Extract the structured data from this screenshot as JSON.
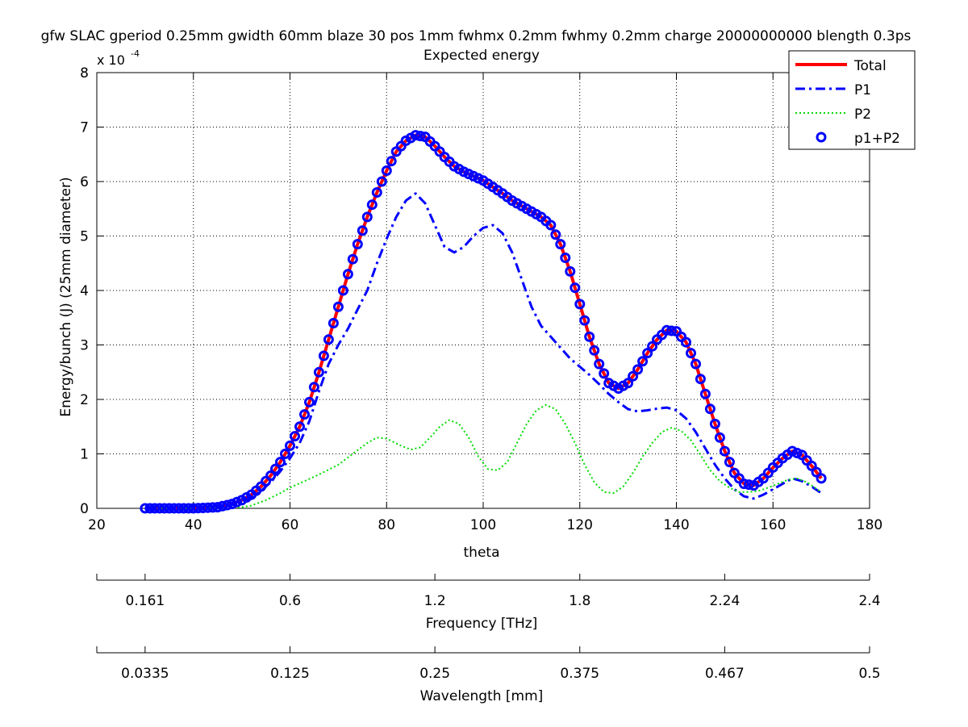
{
  "chart_data": {
    "type": "line",
    "title": "gfw SLAC gperiod 0.25mm gwidth 60mm blaze 30 pos 1mm fwhmx 0.2mm fwhmy 0.2mm charge 20000000000 blength 0.3ps",
    "subtitle": "Expected energy",
    "xlabel": "theta",
    "ylabel": "Energy/bunch (J) (25mm diameter)",
    "y_multiplier_label": "x 10",
    "y_multiplier_exponent": "-4",
    "xlim": [
      20,
      180
    ],
    "ylim": [
      0,
      8
    ],
    "x_ticks": [
      20,
      40,
      60,
      80,
      100,
      120,
      140,
      160,
      180
    ],
    "y_ticks": [
      0,
      1,
      2,
      3,
      4,
      5,
      6,
      7,
      8
    ],
    "grid": true,
    "legend_position": "top-right",
    "secondary_axes": [
      {
        "label": "Frequency [THz]",
        "ticks": [
          {
            "theta": 30,
            "label": "0.161"
          },
          {
            "theta": 60,
            "label": "0.6"
          },
          {
            "theta": 90,
            "label": "1.2"
          },
          {
            "theta": 120,
            "label": "1.8"
          },
          {
            "theta": 150,
            "label": "2.24"
          },
          {
            "theta": 180,
            "label": "2.4"
          }
        ]
      },
      {
        "label": "Wavelength [mm]",
        "ticks": [
          {
            "theta": 30,
            "label": "0.0335"
          },
          {
            "theta": 60,
            "label": "0.125"
          },
          {
            "theta": 90,
            "label": "0.25"
          },
          {
            "theta": 120,
            "label": "0.375"
          },
          {
            "theta": 150,
            "label": "0.467"
          },
          {
            "theta": 180,
            "label": "0.5"
          }
        ]
      }
    ],
    "series": [
      {
        "name": "Total",
        "color": "#ff0000",
        "style": "solid",
        "points": [
          [
            30,
            0
          ],
          [
            40,
            0
          ],
          [
            45,
            0.02
          ],
          [
            48,
            0.08
          ],
          [
            50,
            0.15
          ],
          [
            52,
            0.25
          ],
          [
            54,
            0.4
          ],
          [
            56,
            0.6
          ],
          [
            58,
            0.85
          ],
          [
            60,
            1.15
          ],
          [
            62,
            1.5
          ],
          [
            64,
            1.95
          ],
          [
            66,
            2.5
          ],
          [
            68,
            3.1
          ],
          [
            70,
            3.7
          ],
          [
            72,
            4.3
          ],
          [
            74,
            4.85
          ],
          [
            76,
            5.35
          ],
          [
            78,
            5.8
          ],
          [
            80,
            6.2
          ],
          [
            82,
            6.55
          ],
          [
            84,
            6.75
          ],
          [
            86,
            6.85
          ],
          [
            88,
            6.82
          ],
          [
            90,
            6.65
          ],
          [
            92,
            6.45
          ],
          [
            94,
            6.28
          ],
          [
            96,
            6.18
          ],
          [
            98,
            6.1
          ],
          [
            100,
            6.02
          ],
          [
            102,
            5.9
          ],
          [
            104,
            5.78
          ],
          [
            106,
            5.65
          ],
          [
            108,
            5.55
          ],
          [
            110,
            5.45
          ],
          [
            112,
            5.35
          ],
          [
            114,
            5.2
          ],
          [
            116,
            4.85
          ],
          [
            118,
            4.35
          ],
          [
            120,
            3.75
          ],
          [
            122,
            3.15
          ],
          [
            124,
            2.65
          ],
          [
            126,
            2.3
          ],
          [
            128,
            2.2
          ],
          [
            130,
            2.3
          ],
          [
            132,
            2.55
          ],
          [
            134,
            2.85
          ],
          [
            136,
            3.1
          ],
          [
            138,
            3.27
          ],
          [
            140,
            3.25
          ],
          [
            142,
            3.05
          ],
          [
            144,
            2.65
          ],
          [
            146,
            2.1
          ],
          [
            148,
            1.55
          ],
          [
            150,
            1.05
          ],
          [
            152,
            0.65
          ],
          [
            154,
            0.45
          ],
          [
            156,
            0.42
          ],
          [
            158,
            0.55
          ],
          [
            160,
            0.75
          ],
          [
            162,
            0.92
          ],
          [
            164,
            1.05
          ],
          [
            166,
            0.98
          ],
          [
            168,
            0.78
          ],
          [
            170,
            0.55
          ]
        ]
      },
      {
        "name": "P1",
        "color": "#0000ff",
        "style": "dashdot",
        "points": [
          [
            30,
            0
          ],
          [
            40,
            0
          ],
          [
            45,
            0.02
          ],
          [
            48,
            0.06
          ],
          [
            50,
            0.12
          ],
          [
            52,
            0.2
          ],
          [
            54,
            0.32
          ],
          [
            56,
            0.48
          ],
          [
            58,
            0.68
          ],
          [
            60,
            0.92
          ],
          [
            62,
            1.2
          ],
          [
            64,
            1.6
          ],
          [
            66,
            2.15
          ],
          [
            68,
            2.65
          ],
          [
            70,
            3.0
          ],
          [
            72,
            3.3
          ],
          [
            74,
            3.65
          ],
          [
            76,
            4.0
          ],
          [
            78,
            4.5
          ],
          [
            80,
            4.95
          ],
          [
            82,
            5.35
          ],
          [
            84,
            5.65
          ],
          [
            86,
            5.78
          ],
          [
            88,
            5.6
          ],
          [
            90,
            5.2
          ],
          [
            92,
            4.8
          ],
          [
            94,
            4.7
          ],
          [
            96,
            4.8
          ],
          [
            98,
            5.0
          ],
          [
            100,
            5.15
          ],
          [
            102,
            5.2
          ],
          [
            104,
            5.05
          ],
          [
            106,
            4.7
          ],
          [
            108,
            4.2
          ],
          [
            110,
            3.7
          ],
          [
            112,
            3.35
          ],
          [
            114,
            3.15
          ],
          [
            116,
            2.95
          ],
          [
            118,
            2.75
          ],
          [
            120,
            2.6
          ],
          [
            122,
            2.45
          ],
          [
            124,
            2.28
          ],
          [
            126,
            2.1
          ],
          [
            128,
            1.95
          ],
          [
            130,
            1.82
          ],
          [
            132,
            1.78
          ],
          [
            134,
            1.8
          ],
          [
            136,
            1.83
          ],
          [
            138,
            1.85
          ],
          [
            140,
            1.8
          ],
          [
            142,
            1.65
          ],
          [
            144,
            1.4
          ],
          [
            146,
            1.1
          ],
          [
            148,
            0.8
          ],
          [
            150,
            0.55
          ],
          [
            152,
            0.35
          ],
          [
            154,
            0.22
          ],
          [
            156,
            0.18
          ],
          [
            158,
            0.25
          ],
          [
            160,
            0.35
          ],
          [
            162,
            0.45
          ],
          [
            164,
            0.55
          ],
          [
            166,
            0.5
          ],
          [
            168,
            0.4
          ],
          [
            170,
            0.28
          ]
        ]
      },
      {
        "name": "P2",
        "color": "#00dd00",
        "style": "dotted",
        "points": [
          [
            30,
            0
          ],
          [
            45,
            0
          ],
          [
            50,
            0.02
          ],
          [
            52,
            0.05
          ],
          [
            55,
            0.15
          ],
          [
            58,
            0.28
          ],
          [
            60,
            0.38
          ],
          [
            63,
            0.5
          ],
          [
            66,
            0.62
          ],
          [
            70,
            0.8
          ],
          [
            73,
            1.0
          ],
          [
            76,
            1.2
          ],
          [
            78,
            1.3
          ],
          [
            80,
            1.28
          ],
          [
            83,
            1.15
          ],
          [
            85,
            1.08
          ],
          [
            87,
            1.12
          ],
          [
            89,
            1.3
          ],
          [
            91,
            1.5
          ],
          [
            93,
            1.62
          ],
          [
            95,
            1.55
          ],
          [
            97,
            1.3
          ],
          [
            99,
            0.95
          ],
          [
            101,
            0.72
          ],
          [
            103,
            0.7
          ],
          [
            105,
            0.85
          ],
          [
            107,
            1.2
          ],
          [
            109,
            1.55
          ],
          [
            111,
            1.8
          ],
          [
            113,
            1.9
          ],
          [
            115,
            1.82
          ],
          [
            117,
            1.55
          ],
          [
            119,
            1.2
          ],
          [
            121,
            0.8
          ],
          [
            123,
            0.48
          ],
          [
            125,
            0.3
          ],
          [
            127,
            0.28
          ],
          [
            129,
            0.4
          ],
          [
            131,
            0.65
          ],
          [
            133,
            0.95
          ],
          [
            135,
            1.2
          ],
          [
            137,
            1.4
          ],
          [
            139,
            1.48
          ],
          [
            141,
            1.42
          ],
          [
            143,
            1.25
          ],
          [
            145,
            0.98
          ],
          [
            147,
            0.7
          ],
          [
            149,
            0.5
          ],
          [
            151,
            0.38
          ],
          [
            153,
            0.3
          ],
          [
            155,
            0.3
          ],
          [
            157,
            0.32
          ],
          [
            159,
            0.38
          ],
          [
            161,
            0.45
          ],
          [
            163,
            0.52
          ],
          [
            165,
            0.55
          ],
          [
            167,
            0.48
          ],
          [
            170,
            0.3
          ]
        ]
      },
      {
        "name": "p1+P2",
        "color": "#0000ff",
        "style": "markers",
        "marker_step": 1
      }
    ]
  }
}
